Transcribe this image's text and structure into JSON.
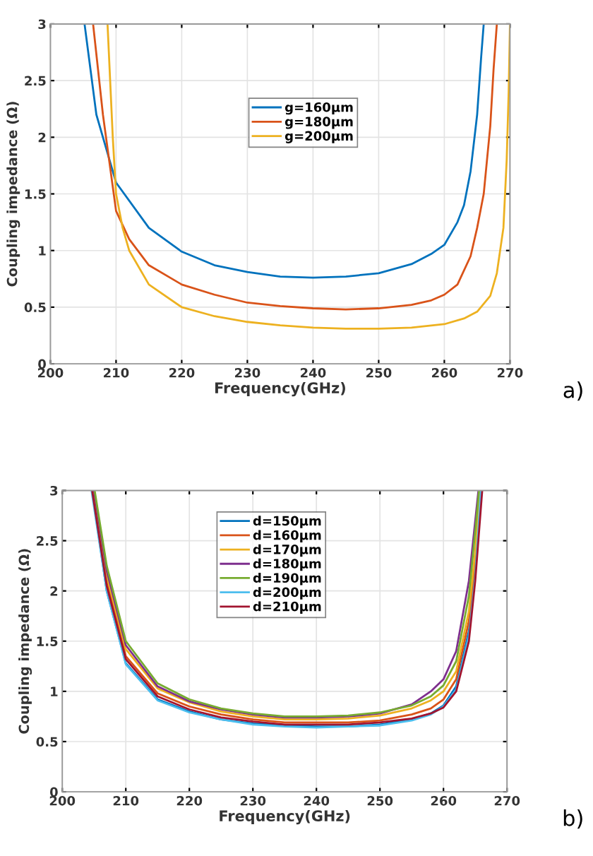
{
  "chart_data": [
    {
      "type": "line",
      "xlabel": "Frequency(GHz)",
      "ylabel": "Coupling impedance (Ω)",
      "xlim": [
        200,
        270
      ],
      "ylim": [
        0,
        3
      ],
      "xticks": [
        200,
        210,
        220,
        230,
        240,
        250,
        260,
        270
      ],
      "yticks": [
        0,
        0.5,
        1,
        1.5,
        2,
        2.5,
        3
      ],
      "grid": true,
      "legend": "top",
      "annotations": [
        "a)"
      ],
      "series": [
        {
          "name": "g=160μm",
          "color": "#0072bd",
          "x": [
            205.2,
            207,
            210,
            215,
            220,
            225,
            230,
            235,
            240,
            245,
            250,
            255,
            258,
            260,
            262,
            263,
            264,
            265,
            265.6,
            266
          ],
          "values": [
            3,
            2.2,
            1.6,
            1.2,
            0.99,
            0.87,
            0.81,
            0.77,
            0.76,
            0.77,
            0.8,
            0.88,
            0.97,
            1.05,
            1.25,
            1.4,
            1.7,
            2.2,
            2.7,
            3
          ]
        },
        {
          "name": "g=180μm",
          "color": "#d95319",
          "x": [
            206.5,
            208,
            210,
            212,
            215,
            220,
            225,
            230,
            235,
            240,
            245,
            250,
            255,
            258,
            260,
            262,
            264,
            265,
            266,
            267,
            267.5,
            268
          ],
          "values": [
            3,
            2.2,
            1.35,
            1.1,
            0.87,
            0.7,
            0.61,
            0.54,
            0.51,
            0.49,
            0.48,
            0.49,
            0.52,
            0.56,
            0.61,
            0.7,
            0.95,
            1.2,
            1.5,
            2.1,
            2.6,
            3
          ]
        },
        {
          "name": "g=200μm",
          "color": "#edb120",
          "x": [
            208.7,
            209.5,
            210,
            211,
            212,
            215,
            220,
            225,
            230,
            235,
            240,
            245,
            250,
            255,
            260,
            263,
            265,
            267,
            268,
            269,
            269.5,
            269.8,
            270
          ],
          "values": [
            3,
            2.0,
            1.5,
            1.2,
            1.0,
            0.7,
            0.5,
            0.42,
            0.37,
            0.34,
            0.32,
            0.31,
            0.31,
            0.32,
            0.35,
            0.4,
            0.46,
            0.6,
            0.8,
            1.2,
            1.8,
            2.4,
            3
          ]
        }
      ]
    },
    {
      "type": "line",
      "xlabel": "Frequency(GHz)",
      "ylabel": "Coupling impedance (Ω)",
      "xlim": [
        200,
        270
      ],
      "ylim": [
        0,
        3
      ],
      "xticks": [
        200,
        210,
        220,
        230,
        240,
        250,
        260,
        270
      ],
      "yticks": [
        0,
        0.5,
        1,
        1.5,
        2,
        2.5,
        3
      ],
      "grid": true,
      "legend": "top",
      "annotations": [
        "b)"
      ],
      "series": [
        {
          "name": "d=150μm",
          "color": "#0072bd",
          "x": [
            204.7,
            207,
            210,
            215,
            220,
            225,
            230,
            235,
            240,
            245,
            250,
            255,
            258,
            260,
            262,
            264,
            265,
            265.9
          ],
          "values": [
            3,
            2.0,
            1.28,
            0.92,
            0.8,
            0.72,
            0.68,
            0.66,
            0.65,
            0.65,
            0.67,
            0.72,
            0.78,
            0.86,
            1.05,
            1.6,
            2.2,
            3
          ]
        },
        {
          "name": "d=160μm",
          "color": "#d95319",
          "x": [
            204.8,
            207,
            210,
            215,
            220,
            225,
            230,
            235,
            240,
            245,
            250,
            255,
            258,
            260,
            262,
            264,
            265,
            265.8
          ],
          "values": [
            3,
            2.1,
            1.35,
            0.98,
            0.85,
            0.77,
            0.72,
            0.69,
            0.69,
            0.69,
            0.71,
            0.77,
            0.83,
            0.92,
            1.12,
            1.7,
            2.3,
            3
          ]
        },
        {
          "name": "d=170μm",
          "color": "#edb120",
          "x": [
            204.9,
            207,
            210,
            215,
            220,
            225,
            230,
            235,
            240,
            245,
            250,
            255,
            258,
            260,
            262,
            264,
            265,
            265.7
          ],
          "values": [
            3,
            2.15,
            1.42,
            1.03,
            0.89,
            0.8,
            0.75,
            0.72,
            0.72,
            0.73,
            0.76,
            0.83,
            0.91,
            1.0,
            1.2,
            1.8,
            2.4,
            3
          ]
        },
        {
          "name": "d=180μm",
          "color": "#7e2f8e",
          "x": [
            205.0,
            207,
            210,
            215,
            220,
            225,
            230,
            235,
            240,
            245,
            250,
            255,
            258,
            260,
            262,
            264,
            265,
            265.5
          ],
          "values": [
            3,
            2.2,
            1.46,
            1.05,
            0.9,
            0.82,
            0.77,
            0.74,
            0.74,
            0.75,
            0.78,
            0.87,
            1.0,
            1.12,
            1.4,
            2.1,
            2.7,
            3
          ]
        },
        {
          "name": "d=190μm",
          "color": "#77ac30",
          "x": [
            205.1,
            207,
            210,
            215,
            220,
            225,
            230,
            235,
            240,
            245,
            250,
            255,
            258,
            260,
            262,
            264,
            265,
            265.6
          ],
          "values": [
            3,
            2.25,
            1.5,
            1.08,
            0.92,
            0.83,
            0.78,
            0.75,
            0.75,
            0.76,
            0.79,
            0.86,
            0.95,
            1.06,
            1.3,
            1.95,
            2.6,
            3
          ]
        },
        {
          "name": "d=200μm",
          "color": "#4dbeee",
          "x": [
            204.6,
            207,
            210,
            215,
            220,
            225,
            230,
            235,
            240,
            245,
            250,
            255,
            258,
            260,
            262,
            264,
            265,
            265.9
          ],
          "values": [
            3,
            2.0,
            1.27,
            0.91,
            0.79,
            0.72,
            0.67,
            0.65,
            0.64,
            0.65,
            0.66,
            0.71,
            0.77,
            0.85,
            1.02,
            1.55,
            2.15,
            3
          ]
        },
        {
          "name": "d=210μm",
          "color": "#a2142f",
          "x": [
            204.7,
            207,
            210,
            215,
            220,
            225,
            230,
            235,
            240,
            245,
            250,
            255,
            258,
            260,
            262,
            264,
            265,
            266.1
          ],
          "values": [
            3,
            2.05,
            1.32,
            0.95,
            0.82,
            0.74,
            0.7,
            0.67,
            0.67,
            0.67,
            0.69,
            0.73,
            0.78,
            0.84,
            1.0,
            1.5,
            2.1,
            3
          ]
        }
      ]
    }
  ]
}
